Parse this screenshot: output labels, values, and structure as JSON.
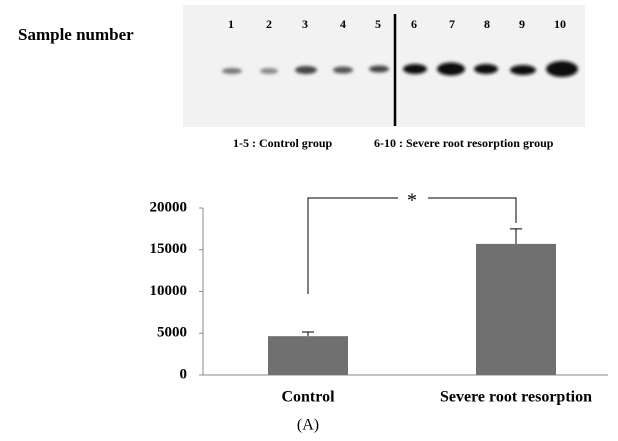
{
  "gel": {
    "label": "Sample number",
    "lanes": [
      "1",
      "2",
      "3",
      "4",
      "5",
      "6",
      "7",
      "8",
      "9",
      "10"
    ],
    "caption_left": "1-5 : Control group",
    "caption_right": "6-10 : Severe root resorption group"
  },
  "chart_data": {
    "type": "bar",
    "categories": [
      "Control",
      "Severe root resorption"
    ],
    "values": [
      4650,
      15700
    ],
    "errors": [
      500,
      1800
    ],
    "color": "#707070",
    "ylim": [
      0,
      20000
    ],
    "yticks": [
      0,
      5000,
      10000,
      15000,
      20000
    ],
    "annotation": "*"
  },
  "panel_label": "(A)"
}
